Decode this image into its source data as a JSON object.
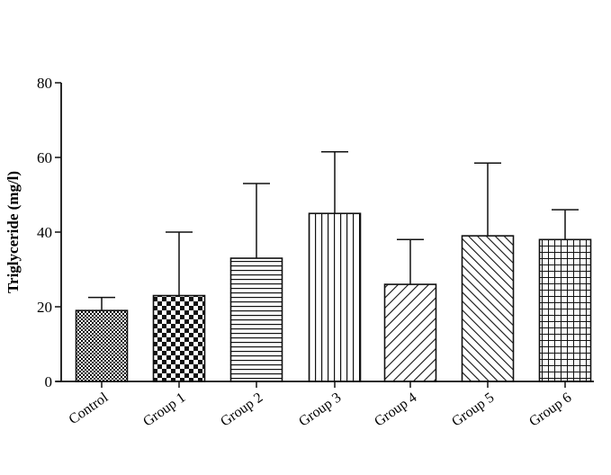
{
  "chart_data": {
    "type": "bar",
    "title": "",
    "xlabel": "",
    "ylabel": "Triglyceride (mg/l)",
    "ylim": [
      0,
      80
    ],
    "yticks": [
      0,
      20,
      40,
      60,
      80
    ],
    "grid": false,
    "categories": [
      "Control",
      "Group 1",
      "Group 2",
      "Group 3",
      "Group 4",
      "Group 5",
      "Group 6"
    ],
    "values": [
      19,
      23,
      33,
      45,
      26,
      39,
      38
    ],
    "errors": [
      3.5,
      17,
      20,
      16.5,
      12,
      19.5,
      8
    ],
    "patterns": [
      "small-checker",
      "large-checker",
      "horizontal-lines",
      "vertical-lines",
      "diagonal-up",
      "diagonal-down",
      "grid"
    ],
    "bar_color": "#111111",
    "background": "#ffffff"
  }
}
